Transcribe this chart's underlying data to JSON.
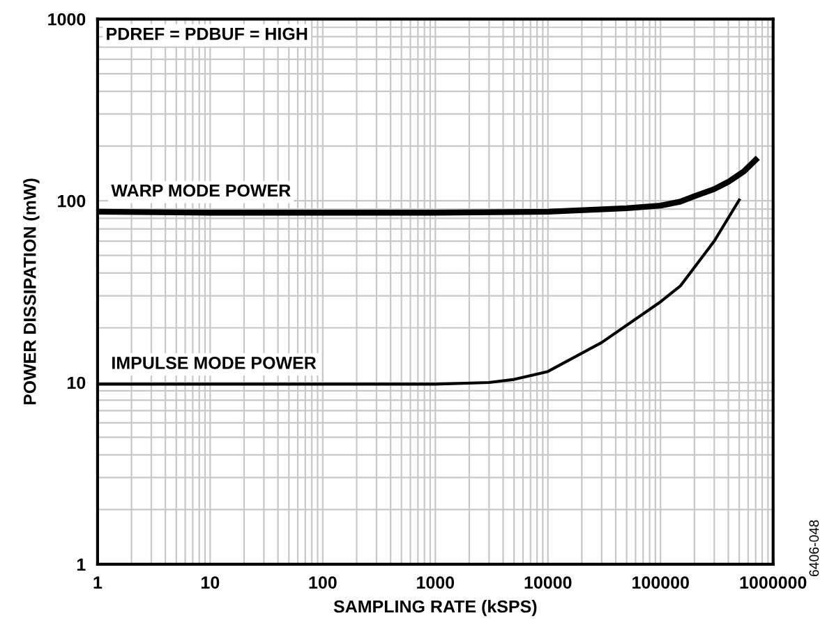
{
  "chart_data": {
    "type": "line",
    "xlabel": "SAMPLING RATE (kSPS)",
    "ylabel": "POWER DISSIPATION (mW)",
    "log": "xy",
    "xlim": [
      1,
      1000000
    ],
    "ylim": [
      1,
      1000
    ],
    "xticks": [
      1,
      10,
      100,
      1000,
      10000,
      100000,
      1000000
    ],
    "yticks": [
      1,
      10,
      100,
      1000
    ],
    "grid": true,
    "marker": "none",
    "line_style": "solid",
    "series": [
      {
        "color": "#000000",
        "x": [
          1,
          10,
          100,
          1000,
          10000,
          50000,
          100000,
          150000,
          200000,
          300000,
          400000,
          550000,
          700000
        ],
        "values": [
          87,
          86,
          86,
          86,
          87,
          91,
          94,
          99,
          106,
          116,
          127,
          145,
          168
        ]
      },
      {
        "color": "#000000",
        "x": [
          1,
          10,
          100,
          1000,
          3000,
          5000,
          10000,
          30000,
          100000,
          150000,
          300000,
          500000
        ],
        "values": [
          9.8,
          9.8,
          9.8,
          9.8,
          10.0,
          10.4,
          11.5,
          16.6,
          27.8,
          34,
          60,
          101
        ]
      }
    ],
    "annotations": [
      {
        "text": "PDREF = PDBUF = HIGH"
      },
      {
        "text": "WARP MODE POWER",
        "x": 1,
        "y": 87
      },
      {
        "text": "IMPULSE MODE POWER",
        "x": 1,
        "y": 9.8
      },
      {
        "text": "6406-048"
      }
    ]
  }
}
